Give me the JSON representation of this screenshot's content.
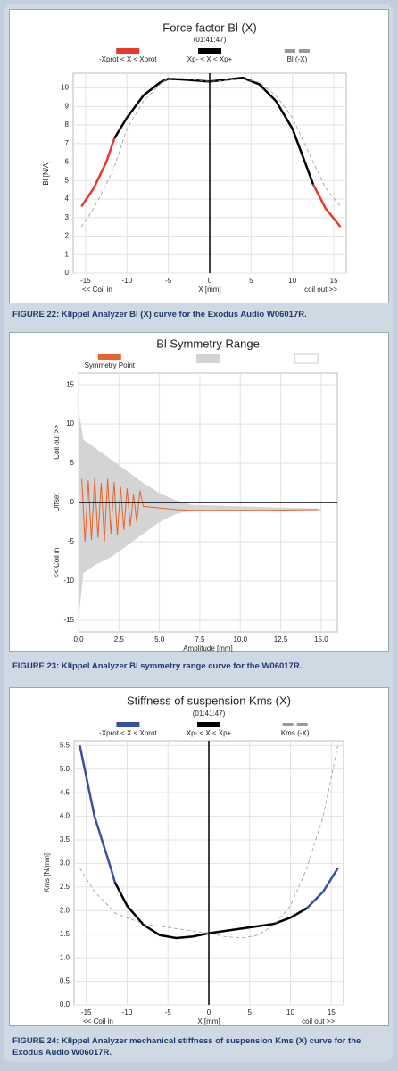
{
  "chart_data": [
    {
      "type": "line",
      "title": "Force factor Bl (X)",
      "subtitle": "(01:41:47)",
      "xlabel": "X [mm]",
      "ylabel": "Bl [N/A]",
      "annotations": [
        "<< Coil in",
        "coil out >>"
      ],
      "caption": "FIGURE 22: Klippel Analyzer Bl (X) curve for the Exodus Audio W06017R.",
      "xlim": [
        -16.5,
        16.5
      ],
      "xticks": [
        -15,
        -10,
        -5,
        0,
        5,
        10,
        15
      ],
      "ylim": [
        0,
        10.8
      ],
      "yticks": [
        0,
        1,
        2,
        3,
        4,
        5,
        6,
        7,
        8,
        9,
        10
      ],
      "grid": true,
      "zero_line": "x",
      "x": [
        -15.5,
        -14,
        -12.5,
        -11.5,
        -10,
        -8,
        -6,
        -5,
        -3,
        0,
        3,
        4,
        6,
        8,
        10,
        12.5,
        14,
        15.8
      ],
      "series": [
        {
          "name": "-Xprot < X < Xprot",
          "color": "#e8392b",
          "values": [
            3.6,
            4.6,
            6.0,
            7.3,
            null,
            null,
            null,
            null,
            null,
            null,
            null,
            null,
            null,
            null,
            null,
            4.8,
            3.5,
            2.5
          ]
        },
        {
          "name": "Xp- < X < Xp+",
          "color": "#000000",
          "values": [
            null,
            null,
            null,
            7.3,
            8.4,
            9.6,
            10.3,
            10.5,
            10.45,
            10.35,
            10.5,
            10.55,
            10.2,
            9.3,
            7.8,
            4.8,
            null,
            null
          ]
        },
        {
          "name": "Bl (-X)",
          "color": "#999999",
          "dashed": true,
          "values": [
            2.5,
            3.5,
            4.8,
            5.8,
            7.8,
            9.3,
            10.2,
            10.55,
            10.5,
            10.35,
            10.45,
            10.5,
            10.3,
            9.6,
            8.4,
            6.0,
            4.6,
            3.6
          ]
        }
      ]
    },
    {
      "type": "line",
      "title": "Bl Symmetry Range",
      "xlabel": "Amplitude [mm]",
      "ylabel": [
        "<< Coil in",
        "Offset",
        "Coil out >>"
      ],
      "caption": "FIGURE 23: Klippel Analyzer Bl symmetry range curve for the W06017R.",
      "xlim": [
        0,
        16
      ],
      "xticks": [
        {
          "value": 0,
          "label": "0.0"
        },
        {
          "value": 2.5,
          "label": "2.5"
        },
        {
          "value": 5,
          "label": "5.0"
        },
        {
          "value": 7.5,
          "label": "7.5"
        },
        {
          "value": 10,
          "label": "10.0"
        },
        {
          "value": 12.5,
          "label": "12.5"
        },
        {
          "value": 15,
          "label": "15.0"
        }
      ],
      "ylim": [
        -16.5,
        16.5
      ],
      "yticks": [
        -15,
        -10,
        -5,
        0,
        5,
        10,
        15
      ],
      "grid": true,
      "zero_line": "y",
      "series": [
        {
          "color": "#d4d4d4",
          "x": [
            0,
            0.3,
            1,
            2,
            3,
            4,
            5,
            6,
            7,
            15
          ],
          "values": [
            12,
            8,
            7,
            5.5,
            4,
            2.5,
            1.2,
            0.3,
            -0.3,
            -0.8
          ],
          "low": [
            -15,
            -9,
            -8,
            -7,
            -5.5,
            -4,
            -2.5,
            -1.5,
            -1,
            -1
          ]
        },
        {
          "name": "Symmetry Point",
          "color": "#e8622b",
          "x": [
            0.2,
            0.4,
            0.6,
            0.8,
            1.0,
            1.2,
            1.4,
            1.6,
            1.8,
            2.0,
            2.2,
            2.4,
            2.6,
            2.8,
            3.0,
            3.2,
            3.4,
            3.6,
            3.8,
            4.0,
            5,
            6,
            7,
            8,
            10,
            12,
            14.8
          ],
          "values": [
            3,
            -5,
            2.8,
            -4.8,
            3.2,
            -4.5,
            2.5,
            -5,
            3,
            -4,
            2.6,
            -4.2,
            2,
            -3.5,
            1.8,
            -3,
            1,
            -2.5,
            1.5,
            -0.5,
            -0.7,
            -0.9,
            -1.0,
            -1.0,
            -1.0,
            -1.0,
            -0.9
          ]
        }
      ]
    },
    {
      "type": "line",
      "title": "Stiffness of suspension Kms (X)",
      "subtitle": "(01:41:47)",
      "xlabel": "X [mm]",
      "ylabel": "Kms [N/mm]",
      "annotations": [
        "<< Coil in",
        "coil out >>"
      ],
      "caption": "FIGURE 24: Klippel Analyzer mechanical stiffness of suspension Kms (X) curve for the Exodus Audio W06017R.",
      "xlim": [
        -16.5,
        16.5
      ],
      "xticks": [
        -15,
        -10,
        -5,
        0,
        5,
        10,
        15
      ],
      "ylim": [
        0,
        5.6
      ],
      "yticks": [
        {
          "value": 0,
          "label": "0.0"
        },
        {
          "value": 0.5,
          "label": "0.5"
        },
        {
          "value": 1,
          "label": "1.0"
        },
        {
          "value": 1.5,
          "label": "1.5"
        },
        {
          "value": 2,
          "label": "2.0"
        },
        {
          "value": 2.5,
          "label": "2.5"
        },
        {
          "value": 3,
          "label": "3.0"
        },
        {
          "value": 3.5,
          "label": "3.5"
        },
        {
          "value": 4,
          "label": "4.0"
        },
        {
          "value": 4.5,
          "label": "4.5"
        },
        {
          "value": 5,
          "label": "5.0"
        },
        {
          "value": 5.5,
          "label": "5.5"
        }
      ],
      "grid": true,
      "zero_line": "x",
      "x": [
        -15.8,
        -14,
        -12,
        -11.5,
        -10,
        -8,
        -6,
        -4,
        -2,
        0,
        2,
        4,
        6,
        8,
        10,
        12,
        14,
        15.8
      ],
      "series": [
        {
          "name": "-Xprot < X < Xprot",
          "color": "#3b4fa0",
          "values": [
            5.5,
            4.0,
            2.9,
            2.6,
            null,
            null,
            null,
            null,
            null,
            null,
            null,
            null,
            null,
            null,
            null,
            2.05,
            2.4,
            2.9
          ]
        },
        {
          "name": "Xp- < X < Xp+",
          "color": "#000000",
          "values": [
            null,
            null,
            null,
            2.6,
            2.1,
            1.7,
            1.48,
            1.42,
            1.45,
            1.52,
            1.57,
            1.62,
            1.67,
            1.72,
            1.85,
            2.05,
            null,
            null
          ]
        },
        {
          "name": "Kms (-X)",
          "color": "#999999",
          "dashed": true,
          "values": [
            2.9,
            2.4,
            2.05,
            1.95,
            1.85,
            1.72,
            1.67,
            1.62,
            1.57,
            1.52,
            1.45,
            1.42,
            1.48,
            1.7,
            2.1,
            2.9,
            4.0,
            5.5
          ]
        }
      ]
    }
  ]
}
